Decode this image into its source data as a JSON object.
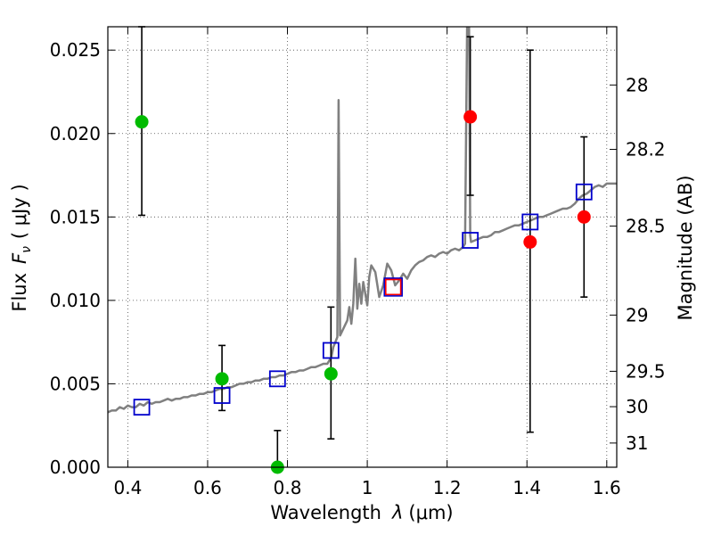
{
  "chart_data": {
    "type": "scatter",
    "xlabel_prefix": "Wavelength",
    "xlabel_symbol": "λ",
    "xlabel_unit": "(μm)",
    "ylabel_prefix": "Flux",
    "ylabel_symbol": "F",
    "ylabel_subscript": "ν",
    "ylabel_unit": "( μJy )",
    "y2label": "Magnitude (AB)",
    "xlim": [
      0.35,
      1.625
    ],
    "ylim": [
      0.0,
      0.0264
    ],
    "grid": true,
    "x_ticks": [
      {
        "value": 0.4,
        "label": "0.4"
      },
      {
        "value": 0.6,
        "label": "0.6"
      },
      {
        "value": 0.8,
        "label": "0.8"
      },
      {
        "value": 1.0,
        "label": "1"
      },
      {
        "value": 1.2,
        "label": "1.2"
      },
      {
        "value": 1.4,
        "label": "1.4"
      },
      {
        "value": 1.6,
        "label": "1.6"
      }
    ],
    "y_ticks": [
      {
        "value": 0.0,
        "label": "0.000"
      },
      {
        "value": 0.005,
        "label": "0.005"
      },
      {
        "value": 0.01,
        "label": "0.010"
      },
      {
        "value": 0.015,
        "label": "0.015"
      },
      {
        "value": 0.02,
        "label": "0.020"
      },
      {
        "value": 0.025,
        "label": "0.025"
      }
    ],
    "y2_ticks": [
      {
        "flux": 0.02291,
        "label": "28"
      },
      {
        "flux": 0.01905,
        "label": "28.2"
      },
      {
        "flux": 0.01445,
        "label": "28.5"
      },
      {
        "flux": 0.00912,
        "label": "29"
      },
      {
        "flux": 0.00575,
        "label": "29.5"
      },
      {
        "flux": 0.00363,
        "label": "30"
      },
      {
        "flux": 0.00145,
        "label": "31"
      }
    ],
    "colors": {
      "model": "#808080",
      "detection": "#00bb00",
      "upper_band": "#ff0000",
      "model_box": "#0000cc",
      "model_box_red": "#ff0000",
      "errorbar": "#000000"
    },
    "model_spectrum": [
      [
        0.35,
        0.0033
      ],
      [
        0.36,
        0.0034
      ],
      [
        0.37,
        0.0034
      ],
      [
        0.38,
        0.0036
      ],
      [
        0.39,
        0.0035
      ],
      [
        0.4,
        0.0037
      ],
      [
        0.41,
        0.0036
      ],
      [
        0.42,
        0.0036
      ],
      [
        0.43,
        0.0038
      ],
      [
        0.44,
        0.0037
      ],
      [
        0.45,
        0.0039
      ],
      [
        0.46,
        0.0038
      ],
      [
        0.47,
        0.0039
      ],
      [
        0.48,
        0.0039
      ],
      [
        0.49,
        0.004
      ],
      [
        0.5,
        0.0041
      ],
      [
        0.51,
        0.004
      ],
      [
        0.52,
        0.0041
      ],
      [
        0.53,
        0.0041
      ],
      [
        0.54,
        0.0042
      ],
      [
        0.55,
        0.0042
      ],
      [
        0.56,
        0.0043
      ],
      [
        0.57,
        0.0043
      ],
      [
        0.58,
        0.0044
      ],
      [
        0.59,
        0.0044
      ],
      [
        0.6,
        0.0045
      ],
      [
        0.61,
        0.0045
      ],
      [
        0.62,
        0.0046
      ],
      [
        0.63,
        0.0047
      ],
      [
        0.64,
        0.0047
      ],
      [
        0.65,
        0.0048
      ],
      [
        0.66,
        0.0048
      ],
      [
        0.67,
        0.0049
      ],
      [
        0.68,
        0.005
      ],
      [
        0.69,
        0.005
      ],
      [
        0.7,
        0.0051
      ],
      [
        0.71,
        0.0051
      ],
      [
        0.72,
        0.0052
      ],
      [
        0.73,
        0.0052
      ],
      [
        0.74,
        0.0053
      ],
      [
        0.75,
        0.0053
      ],
      [
        0.76,
        0.0054
      ],
      [
        0.77,
        0.0054
      ],
      [
        0.78,
        0.0055
      ],
      [
        0.79,
        0.0055
      ],
      [
        0.8,
        0.0056
      ],
      [
        0.81,
        0.0057
      ],
      [
        0.82,
        0.0057
      ],
      [
        0.83,
        0.0058
      ],
      [
        0.84,
        0.0058
      ],
      [
        0.85,
        0.0059
      ],
      [
        0.86,
        0.006
      ],
      [
        0.87,
        0.006
      ],
      [
        0.88,
        0.0061
      ],
      [
        0.89,
        0.0062
      ],
      [
        0.9,
        0.0062
      ],
      [
        0.91,
        0.0066
      ],
      [
        0.915,
        0.0072
      ],
      [
        0.92,
        0.0075
      ],
      [
        0.925,
        0.0078
      ],
      [
        0.928,
        0.022
      ],
      [
        0.932,
        0.0079
      ],
      [
        0.94,
        0.0083
      ],
      [
        0.95,
        0.0088
      ],
      [
        0.955,
        0.0096
      ],
      [
        0.96,
        0.0086
      ],
      [
        0.965,
        0.0098
      ],
      [
        0.97,
        0.0125
      ],
      [
        0.975,
        0.0095
      ],
      [
        0.98,
        0.011
      ],
      [
        0.985,
        0.0098
      ],
      [
        0.99,
        0.0111
      ],
      [
        1.0,
        0.0097
      ],
      [
        1.005,
        0.0114
      ],
      [
        1.01,
        0.0121
      ],
      [
        1.02,
        0.0117
      ],
      [
        1.03,
        0.0102
      ],
      [
        1.04,
        0.0109
      ],
      [
        1.05,
        0.0122
      ],
      [
        1.06,
        0.0118
      ],
      [
        1.07,
        0.0109
      ],
      [
        1.08,
        0.0112
      ],
      [
        1.09,
        0.0116
      ],
      [
        1.1,
        0.0113
      ],
      [
        1.11,
        0.0118
      ],
      [
        1.12,
        0.0121
      ],
      [
        1.13,
        0.0123
      ],
      [
        1.14,
        0.0124
      ],
      [
        1.15,
        0.0126
      ],
      [
        1.16,
        0.0127
      ],
      [
        1.17,
        0.0126
      ],
      [
        1.18,
        0.0128
      ],
      [
        1.19,
        0.0129
      ],
      [
        1.2,
        0.0128
      ],
      [
        1.21,
        0.013
      ],
      [
        1.22,
        0.0131
      ],
      [
        1.23,
        0.013
      ],
      [
        1.24,
        0.0132
      ],
      [
        1.245,
        0.0134
      ],
      [
        1.25,
        0.0264
      ],
      [
        1.255,
        0.0264
      ],
      [
        1.258,
        0.0139
      ],
      [
        1.26,
        0.0135
      ],
      [
        1.27,
        0.0136
      ],
      [
        1.28,
        0.0137
      ],
      [
        1.29,
        0.0138
      ],
      [
        1.3,
        0.0138
      ],
      [
        1.31,
        0.0139
      ],
      [
        1.32,
        0.0141
      ],
      [
        1.33,
        0.0141
      ],
      [
        1.34,
        0.0142
      ],
      [
        1.35,
        0.0143
      ],
      [
        1.36,
        0.0144
      ],
      [
        1.37,
        0.0145
      ],
      [
        1.38,
        0.0145
      ],
      [
        1.39,
        0.0146
      ],
      [
        1.4,
        0.0147
      ],
      [
        1.41,
        0.0148
      ],
      [
        1.42,
        0.0149
      ],
      [
        1.43,
        0.015
      ],
      [
        1.44,
        0.015
      ],
      [
        1.45,
        0.0151
      ],
      [
        1.46,
        0.0152
      ],
      [
        1.47,
        0.0153
      ],
      [
        1.48,
        0.0154
      ],
      [
        1.49,
        0.0155
      ],
      [
        1.5,
        0.0155
      ],
      [
        1.51,
        0.0156
      ],
      [
        1.52,
        0.0158
      ],
      [
        1.53,
        0.0161
      ],
      [
        1.54,
        0.0163
      ],
      [
        1.55,
        0.0164
      ],
      [
        1.56,
        0.0166
      ],
      [
        1.57,
        0.0168
      ],
      [
        1.58,
        0.0169
      ],
      [
        1.59,
        0.0168
      ],
      [
        1.6,
        0.017
      ],
      [
        1.61,
        0.017
      ],
      [
        1.625,
        0.017
      ]
    ],
    "photometry": [
      {
        "band": 1,
        "x": 0.435,
        "y": 0.0207,
        "yerr_low": 0.0151,
        "yerr_high": 0.0264,
        "color": "detection"
      },
      {
        "band": 2,
        "x": 0.636,
        "y": 0.0053,
        "yerr_low": 0.0034,
        "yerr_high": 0.0073,
        "color": "detection"
      },
      {
        "band": 3,
        "x": 0.775,
        "y": 0.0,
        "yerr_low": 0.0,
        "yerr_high": 0.0022,
        "color": "detection"
      },
      {
        "band": 4,
        "x": 0.909,
        "y": 0.0056,
        "yerr_low": 0.0017,
        "yerr_high": 0.0096,
        "color": "detection"
      },
      {
        "band": 5,
        "x": 1.258,
        "y": 0.021,
        "yerr_low": 0.0163,
        "yerr_high": 0.0258,
        "color": "upper_band"
      },
      {
        "band": 6,
        "x": 1.408,
        "y": 0.0135,
        "yerr_low": 0.0021,
        "yerr_high": 0.025,
        "color": "upper_band"
      },
      {
        "band": 7,
        "x": 1.543,
        "y": 0.015,
        "yerr_low": 0.0102,
        "yerr_high": 0.0198,
        "color": "upper_band"
      }
    ],
    "model_photometry": [
      {
        "x": 0.435,
        "y": 0.0036,
        "color": "model_box"
      },
      {
        "x": 0.636,
        "y": 0.0043,
        "color": "model_box"
      },
      {
        "x": 0.775,
        "y": 0.0053,
        "color": "model_box"
      },
      {
        "x": 0.909,
        "y": 0.007,
        "color": "model_box"
      },
      {
        "x": 1.065,
        "y": 0.0108,
        "color": "model_box_red"
      },
      {
        "x": 1.258,
        "y": 0.0136,
        "color": "model_box"
      },
      {
        "x": 1.408,
        "y": 0.0147,
        "color": "model_box"
      },
      {
        "x": 1.543,
        "y": 0.0165,
        "color": "model_box"
      }
    ]
  }
}
